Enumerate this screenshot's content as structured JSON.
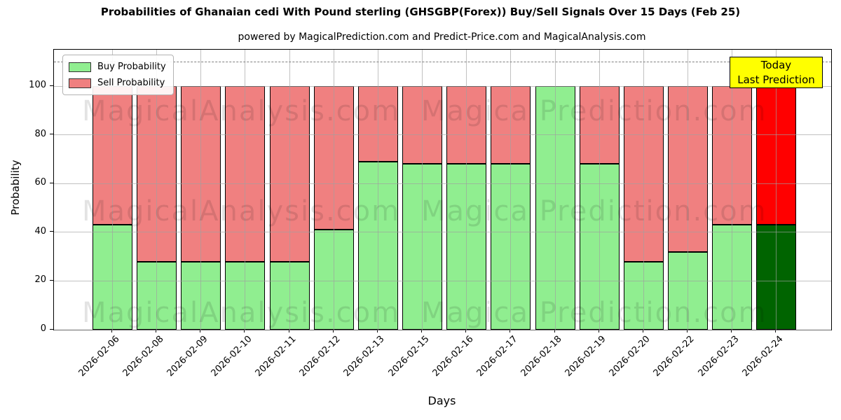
{
  "chart_data": {
    "type": "bar",
    "stacked": true,
    "title": "Probabilities of Ghanaian cedi With Pound sterling (GHSGBP(Forex)) Buy/Sell Signals Over 15 Days (Feb 25)",
    "subtitle": "powered by MagicalPrediction.com and Predict-Price.com and MagicalAnalysis.com",
    "xlabel": "Days",
    "ylabel": "Probability",
    "ylim": [
      0,
      115
    ],
    "yticks": [
      0,
      20,
      40,
      60,
      80,
      100
    ],
    "grid": true,
    "dashed_line_y": 110,
    "legend_position": "upper-left",
    "series": [
      {
        "name": "Buy Probability",
        "color": "#90ee90"
      },
      {
        "name": "Sell Probability",
        "color": "#f08080"
      }
    ],
    "annotation": {
      "line1": "Today",
      "line2": "Last Prediction",
      "bg_color": "#ffff00"
    },
    "watermark_left": "MagicalAnalysis.com",
    "watermark_right": "Magica Prediction.com",
    "last_bar_colors": {
      "buy": "#006400",
      "sell": "#ff0000"
    },
    "bars": [
      {
        "date": "2026-02-06",
        "buy": 43,
        "sell": 57,
        "buy_color": "#90ee90",
        "sell_color": "#f08080"
      },
      {
        "date": "2026-02-08",
        "buy": 28,
        "sell": 72,
        "buy_color": "#90ee90",
        "sell_color": "#f08080"
      },
      {
        "date": "2026-02-09",
        "buy": 28,
        "sell": 72,
        "buy_color": "#90ee90",
        "sell_color": "#f08080"
      },
      {
        "date": "2026-02-10",
        "buy": 28,
        "sell": 72,
        "buy_color": "#90ee90",
        "sell_color": "#f08080"
      },
      {
        "date": "2026-02-11",
        "buy": 28,
        "sell": 72,
        "buy_color": "#90ee90",
        "sell_color": "#f08080"
      },
      {
        "date": "2026-02-12",
        "buy": 41,
        "sell": 59,
        "buy_color": "#90ee90",
        "sell_color": "#f08080"
      },
      {
        "date": "2026-02-13",
        "buy": 69,
        "sell": 31,
        "buy_color": "#90ee90",
        "sell_color": "#f08080"
      },
      {
        "date": "2026-02-15",
        "buy": 68,
        "sell": 32,
        "buy_color": "#90ee90",
        "sell_color": "#f08080"
      },
      {
        "date": "2026-02-16",
        "buy": 68,
        "sell": 32,
        "buy_color": "#90ee90",
        "sell_color": "#f08080"
      },
      {
        "date": "2026-02-17",
        "buy": 68,
        "sell": 32,
        "buy_color": "#90ee90",
        "sell_color": "#f08080"
      },
      {
        "date": "2026-02-18",
        "buy": 100,
        "sell": 0,
        "buy_color": "#90ee90",
        "sell_color": "#f08080"
      },
      {
        "date": "2026-02-19",
        "buy": 68,
        "sell": 32,
        "buy_color": "#90ee90",
        "sell_color": "#f08080"
      },
      {
        "date": "2026-02-20",
        "buy": 28,
        "sell": 72,
        "buy_color": "#90ee90",
        "sell_color": "#f08080"
      },
      {
        "date": "2026-02-22",
        "buy": 32,
        "sell": 68,
        "buy_color": "#90ee90",
        "sell_color": "#f08080"
      },
      {
        "date": "2026-02-23",
        "buy": 43,
        "sell": 57,
        "buy_color": "#90ee90",
        "sell_color": "#f08080"
      },
      {
        "date": "2026-02-24",
        "buy": 43,
        "sell": 57,
        "buy_color": "#006400",
        "sell_color": "#ff0000"
      }
    ]
  }
}
